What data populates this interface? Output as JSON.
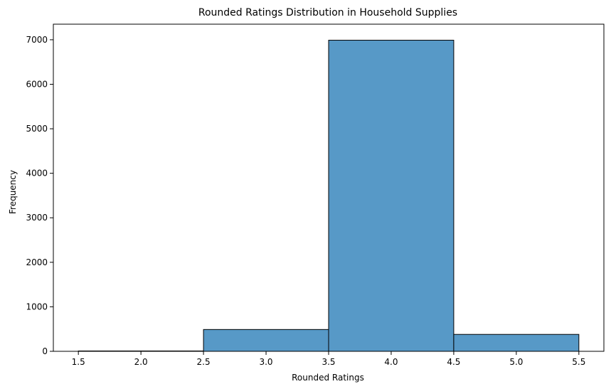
{
  "chart_data": {
    "type": "bar",
    "title": "Rounded Ratings Distribution in Household Supplies",
    "xlabel": "Rounded Ratings",
    "ylabel": "Frequency",
    "bins": [
      {
        "start": 1.5,
        "end": 2.5,
        "value": 8
      },
      {
        "start": 2.5,
        "end": 3.5,
        "value": 490
      },
      {
        "start": 3.5,
        "end": 4.5,
        "value": 6990
      },
      {
        "start": 4.5,
        "end": 5.5,
        "value": 380
      }
    ],
    "xlim": [
      1.3,
      5.7
    ],
    "ylim": [
      0,
      7350
    ],
    "xticks": [
      1.5,
      2.0,
      2.5,
      3.0,
      3.5,
      4.0,
      4.5,
      5.0,
      5.5
    ],
    "xtick_labels": [
      "1.5",
      "2.0",
      "2.5",
      "3.0",
      "3.5",
      "4.0",
      "4.5",
      "5.0",
      "5.5"
    ],
    "yticks": [
      0,
      1000,
      2000,
      3000,
      4000,
      5000,
      6000,
      7000
    ],
    "ytick_labels": [
      "0",
      "1000",
      "2000",
      "3000",
      "4000",
      "5000",
      "6000",
      "7000"
    ],
    "bar_color": "#5799c7",
    "edge_color": "#000000",
    "grid": false,
    "legend": "none"
  }
}
